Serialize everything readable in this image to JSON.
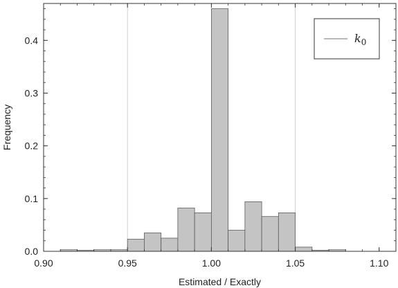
{
  "chart_data": {
    "type": "bar",
    "subtype": "histogram",
    "xlabel": "Estimated / Exactly",
    "ylabel": "Frequency",
    "xlim": [
      0.9,
      1.11
    ],
    "ylim": [
      0,
      0.47
    ],
    "x_ticks": [
      "0.90",
      "0.95",
      "1.00",
      "1.05",
      "1.10"
    ],
    "x_tick_values": [
      0.9,
      0.95,
      1.0,
      1.05,
      1.1
    ],
    "y_ticks": [
      "0.0",
      "0.1",
      "0.2",
      "0.3",
      "0.4"
    ],
    "y_tick_values": [
      0.0,
      0.1,
      0.2,
      0.3,
      0.4
    ],
    "reference_lines_x": [
      0.95,
      1.05
    ],
    "bin_width": 0.01,
    "series": [
      {
        "name": "k",
        "name_subscript": "0",
        "bins": [
          {
            "start": 0.91,
            "value": 0.003
          },
          {
            "start": 0.92,
            "value": 0.002
          },
          {
            "start": 0.93,
            "value": 0.003
          },
          {
            "start": 0.94,
            "value": 0.003
          },
          {
            "start": 0.95,
            "value": 0.023
          },
          {
            "start": 0.96,
            "value": 0.035
          },
          {
            "start": 0.97,
            "value": 0.025
          },
          {
            "start": 0.98,
            "value": 0.082
          },
          {
            "start": 0.99,
            "value": 0.073
          },
          {
            "start": 1.0,
            "value": 0.46
          },
          {
            "start": 1.01,
            "value": 0.04
          },
          {
            "start": 1.02,
            "value": 0.094
          },
          {
            "start": 1.03,
            "value": 0.066
          },
          {
            "start": 1.04,
            "value": 0.073
          },
          {
            "start": 1.05,
            "value": 0.008
          },
          {
            "start": 1.06,
            "value": 0.002
          },
          {
            "start": 1.07,
            "value": 0.003
          }
        ]
      }
    ],
    "grid": false,
    "legend_position": "top-right",
    "colors": {
      "bar_fill": "#c4c4c4",
      "bar_stroke": "#5a5a5a",
      "reference_line": "#d0d0d0",
      "legend_line": "#b8b8b8"
    }
  }
}
